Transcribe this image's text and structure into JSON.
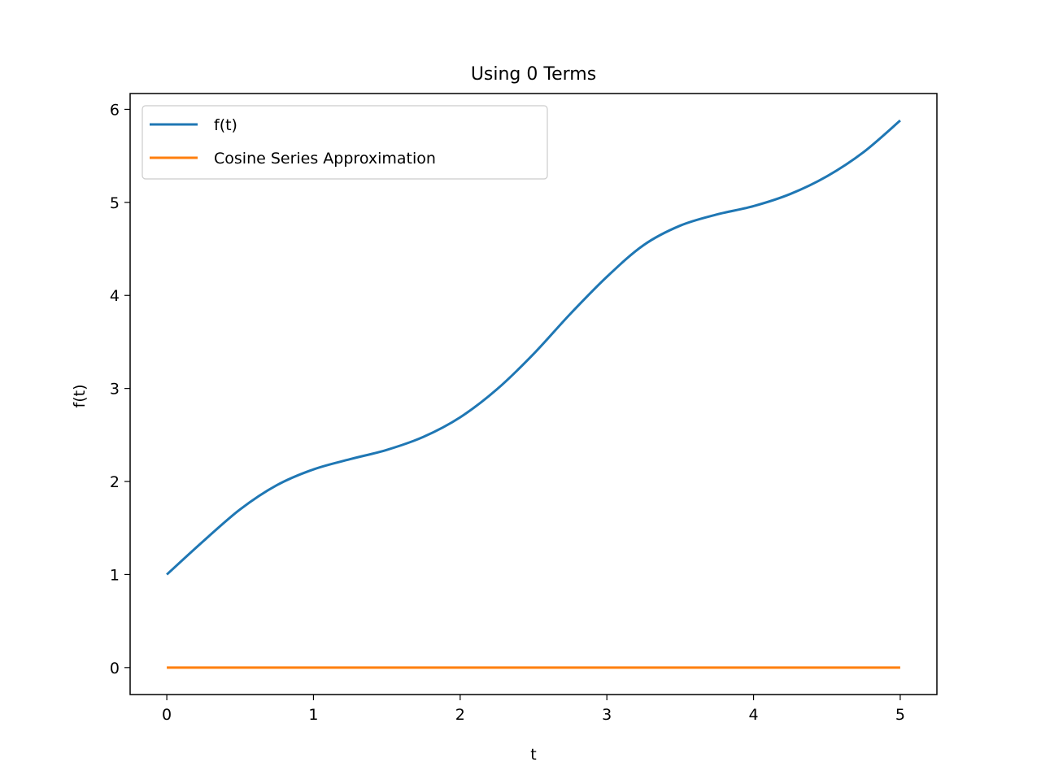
{
  "chart_data": {
    "type": "line",
    "title": "Using 0 Terms",
    "xlabel": "t",
    "ylabel": "f(t)",
    "xlim": [
      -0.25,
      5.25
    ],
    "ylim": [
      -0.29,
      6.17
    ],
    "x_ticks": [
      0,
      1,
      2,
      3,
      4,
      5
    ],
    "y_ticks": [
      0,
      1,
      2,
      3,
      4,
      5,
      6
    ],
    "grid": false,
    "legend_position": "top-left",
    "series": [
      {
        "name": "f(t)",
        "color": "#1f77b4",
        "x": [
          0,
          0.25,
          0.5,
          0.75,
          1.0,
          1.25,
          1.5,
          1.75,
          2.0,
          2.25,
          2.5,
          2.75,
          3.0,
          3.25,
          3.5,
          3.75,
          4.0,
          4.25,
          4.5,
          4.75,
          5.0
        ],
        "y": [
          1.0,
          1.36,
          1.7,
          1.96,
          2.13,
          2.24,
          2.34,
          2.48,
          2.69,
          2.99,
          3.37,
          3.8,
          4.2,
          4.54,
          4.75,
          4.87,
          4.96,
          5.09,
          5.28,
          5.54,
          5.88
        ]
      },
      {
        "name": "Cosine Series Approximation",
        "color": "#ff7f0e",
        "x": [
          0,
          5
        ],
        "y": [
          0,
          0
        ]
      }
    ]
  }
}
